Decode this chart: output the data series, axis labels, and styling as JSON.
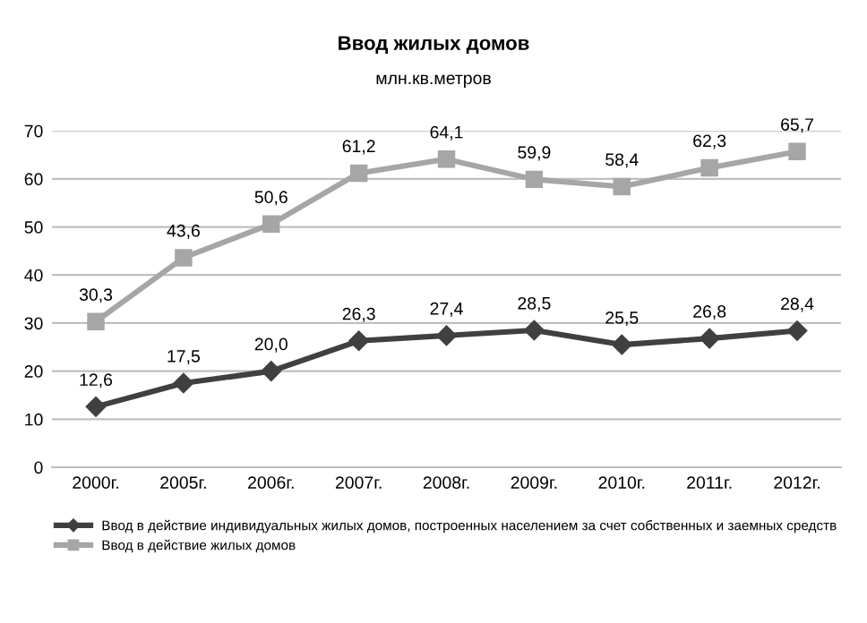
{
  "chart_data": {
    "type": "line",
    "title": "Ввод жилых домов",
    "subtitle": "млн.кв.метров",
    "categories": [
      "2000г.",
      "2005г.",
      "2006г.",
      "2007г.",
      "2008г.",
      "2009г.",
      "2010г.",
      "2011г.",
      "2012г."
    ],
    "series": [
      {
        "name": "Ввод в действие индивидуальных жилых домов, построенных населением за счет собственных и заемных средств",
        "color": "#404040",
        "marker": "diamond",
        "values": [
          12.6,
          17.5,
          20.0,
          26.3,
          27.4,
          28.5,
          25.5,
          26.8,
          28.4
        ],
        "value_labels": [
          "12,6",
          "17,5",
          "20,0",
          "26,3",
          "27,4",
          "28,5",
          "25,5",
          "26,8",
          "28,4"
        ]
      },
      {
        "name": "Ввод в действие жилых домов",
        "color": "#a6a6a6",
        "marker": "square",
        "values": [
          30.3,
          43.6,
          50.6,
          61.2,
          64.1,
          59.9,
          58.4,
          62.3,
          65.7
        ],
        "value_labels": [
          "30,3",
          "43,6",
          "50,6",
          "61,2",
          "64,1",
          "59,9",
          "58,4",
          "62,3",
          "65,7"
        ]
      }
    ],
    "ylim": [
      0,
      70
    ],
    "yticks": [
      0,
      10,
      20,
      30,
      40,
      50,
      60,
      70
    ],
    "grid": "y",
    "legend": "bottom"
  }
}
